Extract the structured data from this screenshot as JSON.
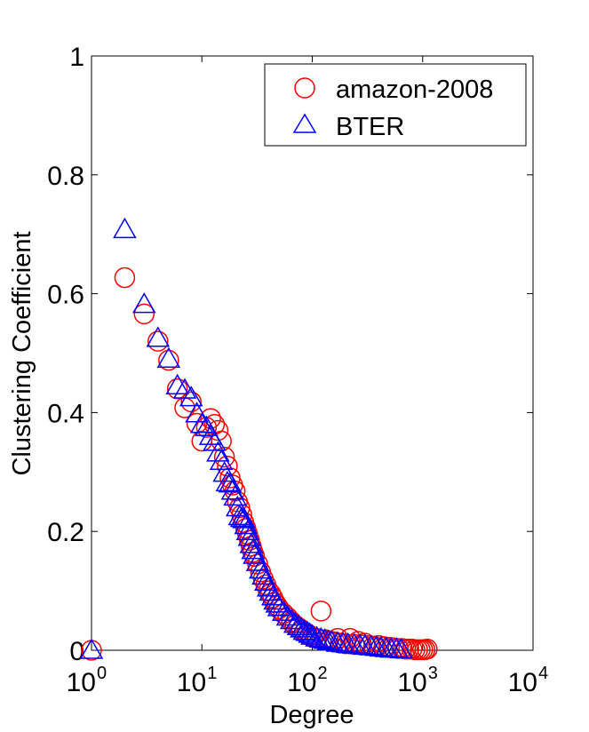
{
  "chart_data": {
    "type": "scatter",
    "title": "",
    "xlabel": "Degree",
    "ylabel": "Clustering Coefficient",
    "xscale": "log",
    "xlim": [
      1,
      10000
    ],
    "ylim": [
      0,
      1
    ],
    "x_ticks": [
      {
        "value": 1,
        "base": "10",
        "exp": "0"
      },
      {
        "value": 10,
        "base": "10",
        "exp": "1"
      },
      {
        "value": 100,
        "base": "10",
        "exp": "2"
      },
      {
        "value": 1000,
        "base": "10",
        "exp": "3"
      },
      {
        "value": 10000,
        "base": "10",
        "exp": "4"
      }
    ],
    "y_ticks": [
      {
        "value": 0,
        "label": "0"
      },
      {
        "value": 0.2,
        "label": "0.2"
      },
      {
        "value": 0.4,
        "label": "0.4"
      },
      {
        "value": 0.6,
        "label": "0.6"
      },
      {
        "value": 0.8,
        "label": "0.8"
      },
      {
        "value": 1,
        "label": "1"
      }
    ],
    "grid": false,
    "legend_position": "top-right",
    "series": [
      {
        "name": "amazon-2008",
        "marker": "circle",
        "color": "#ff0000",
        "points": [
          [
            1,
            0.0
          ],
          [
            2,
            0.627
          ],
          [
            3,
            0.566
          ],
          [
            4,
            0.52
          ],
          [
            5,
            0.488
          ],
          [
            6,
            0.44
          ],
          [
            7,
            0.408
          ],
          [
            8,
            0.418
          ],
          [
            9,
            0.382
          ],
          [
            10,
            0.352
          ],
          [
            11,
            0.375
          ],
          [
            12,
            0.39
          ],
          [
            13,
            0.38
          ],
          [
            14,
            0.37
          ],
          [
            15,
            0.352
          ],
          [
            16,
            0.325
          ],
          [
            17,
            0.31
          ],
          [
            18,
            0.29
          ],
          [
            19,
            0.278
          ],
          [
            20,
            0.268
          ],
          [
            21,
            0.25
          ],
          [
            22,
            0.24
          ],
          [
            23,
            0.228
          ],
          [
            24,
            0.215
          ],
          [
            25,
            0.205
          ],
          [
            26,
            0.195
          ],
          [
            27,
            0.185
          ],
          [
            28,
            0.175
          ],
          [
            29,
            0.165
          ],
          [
            30,
            0.158
          ],
          [
            32,
            0.145
          ],
          [
            34,
            0.132
          ],
          [
            36,
            0.12
          ],
          [
            38,
            0.11
          ],
          [
            40,
            0.1
          ],
          [
            42,
            0.095
          ],
          [
            44,
            0.088
          ],
          [
            46,
            0.08
          ],
          [
            48,
            0.075
          ],
          [
            50,
            0.07
          ],
          [
            55,
            0.062
          ],
          [
            60,
            0.055
          ],
          [
            65,
            0.048
          ],
          [
            70,
            0.042
          ],
          [
            75,
            0.038
          ],
          [
            80,
            0.034
          ],
          [
            85,
            0.03
          ],
          [
            90,
            0.028
          ],
          [
            95,
            0.025
          ],
          [
            100,
            0.022
          ],
          [
            110,
            0.02
          ],
          [
            120,
            0.066
          ],
          [
            130,
            0.018
          ],
          [
            140,
            0.016
          ],
          [
            150,
            0.015
          ],
          [
            160,
            0.014
          ],
          [
            170,
            0.02
          ],
          [
            180,
            0.012
          ],
          [
            200,
            0.011
          ],
          [
            220,
            0.02
          ],
          [
            240,
            0.01
          ],
          [
            260,
            0.015
          ],
          [
            280,
            0.009
          ],
          [
            300,
            0.012
          ],
          [
            330,
            0.008
          ],
          [
            360,
            0.007
          ],
          [
            400,
            0.008
          ],
          [
            450,
            0.006
          ],
          [
            500,
            0.005
          ],
          [
            550,
            0.004
          ],
          [
            600,
            0.003
          ],
          [
            650,
            0.003
          ],
          [
            700,
            0.002
          ],
          [
            750,
            0.002
          ],
          [
            800,
            0.002
          ],
          [
            850,
            0.001
          ],
          [
            900,
            0.001
          ],
          [
            950,
            0.001
          ],
          [
            1000,
            0.001
          ],
          [
            1050,
            0.001
          ],
          [
            1100,
            0.002
          ]
        ]
      },
      {
        "name": "BTER",
        "marker": "triangle",
        "color": "#0000ff",
        "points": [
          [
            1,
            0.0
          ],
          [
            2,
            0.708
          ],
          [
            3,
            0.582
          ],
          [
            4,
            0.525
          ],
          [
            5,
            0.49
          ],
          [
            6,
            0.445
          ],
          [
            7,
            0.438
          ],
          [
            8,
            0.425
          ],
          [
            9,
            0.398
          ],
          [
            10,
            0.38
          ],
          [
            11,
            0.375
          ],
          [
            12,
            0.36
          ],
          [
            13,
            0.35
          ],
          [
            14,
            0.332
          ],
          [
            15,
            0.318
          ],
          [
            16,
            0.298
          ],
          [
            17,
            0.282
          ],
          [
            18,
            0.28
          ],
          [
            19,
            0.268
          ],
          [
            20,
            0.258
          ],
          [
            21,
            0.24
          ],
          [
            22,
            0.225
          ],
          [
            23,
            0.222
          ],
          [
            24,
            0.22
          ],
          [
            25,
            0.21
          ],
          [
            26,
            0.2
          ],
          [
            27,
            0.19
          ],
          [
            28,
            0.178
          ],
          [
            29,
            0.168
          ],
          [
            30,
            0.16
          ],
          [
            32,
            0.148
          ],
          [
            34,
            0.135
          ],
          [
            36,
            0.125
          ],
          [
            38,
            0.115
          ],
          [
            40,
            0.105
          ],
          [
            42,
            0.098
          ],
          [
            44,
            0.09
          ],
          [
            46,
            0.083
          ],
          [
            48,
            0.078
          ],
          [
            50,
            0.072
          ],
          [
            55,
            0.064
          ],
          [
            60,
            0.056
          ],
          [
            65,
            0.05
          ],
          [
            70,
            0.044
          ],
          [
            75,
            0.04
          ],
          [
            80,
            0.036
          ],
          [
            85,
            0.032
          ],
          [
            90,
            0.03
          ],
          [
            95,
            0.027
          ],
          [
            100,
            0.024
          ],
          [
            110,
            0.021
          ],
          [
            120,
            0.019
          ],
          [
            130,
            0.017
          ],
          [
            140,
            0.015
          ],
          [
            150,
            0.014
          ],
          [
            170,
            0.012
          ],
          [
            190,
            0.011
          ],
          [
            210,
            0.01
          ],
          [
            240,
            0.009
          ],
          [
            270,
            0.008
          ],
          [
            300,
            0.007
          ],
          [
            340,
            0.006
          ],
          [
            380,
            0.005
          ],
          [
            420,
            0.004
          ],
          [
            470,
            0.003
          ],
          [
            520,
            0.002
          ],
          [
            580,
            0.002
          ],
          [
            640,
            0.001
          ]
        ]
      }
    ]
  }
}
